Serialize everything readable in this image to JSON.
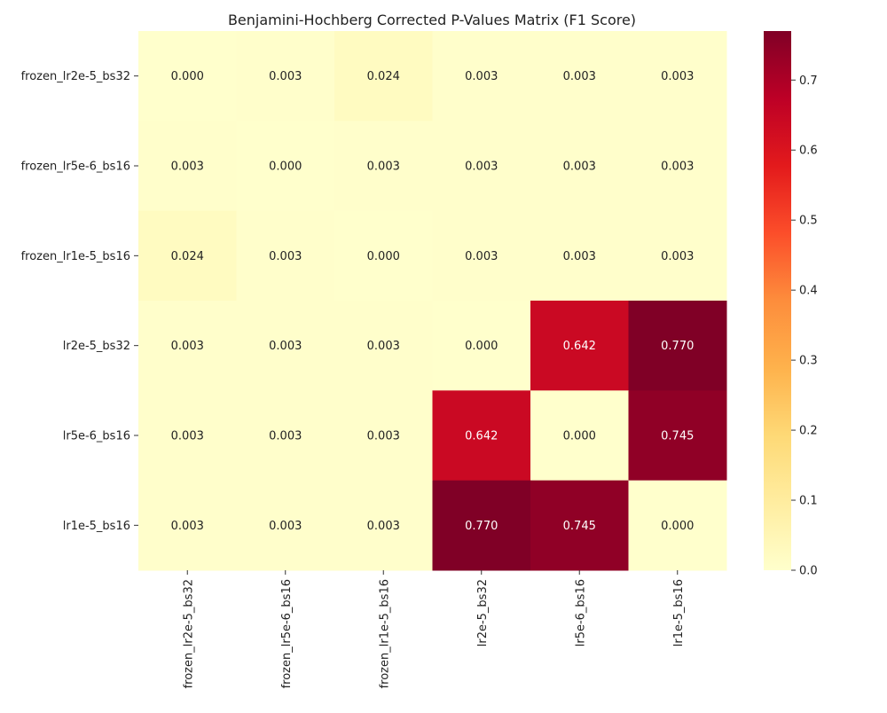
{
  "chart_data": {
    "type": "heatmap",
    "title": "Benjamini-Hochberg Corrected P-Values Matrix (F1 Score)",
    "rows": [
      "frozen_lr2e-5_bs32",
      "frozen_lr5e-6_bs16",
      "frozen_lr1e-5_bs16",
      "lr2e-5_bs32",
      "lr5e-6_bs16",
      "lr1e-5_bs16"
    ],
    "columns": [
      "frozen_lr2e-5_bs32",
      "frozen_lr5e-6_bs16",
      "frozen_lr1e-5_bs16",
      "lr2e-5_bs32",
      "lr5e-6_bs16",
      "lr1e-5_bs16"
    ],
    "values": [
      [
        0.0,
        0.003,
        0.024,
        0.003,
        0.003,
        0.003
      ],
      [
        0.003,
        0.0,
        0.003,
        0.003,
        0.003,
        0.003
      ],
      [
        0.024,
        0.003,
        0.0,
        0.003,
        0.003,
        0.003
      ],
      [
        0.003,
        0.003,
        0.003,
        0.0,
        0.642,
        0.77
      ],
      [
        0.003,
        0.003,
        0.003,
        0.642,
        0.0,
        0.745
      ],
      [
        0.003,
        0.003,
        0.003,
        0.77,
        0.745,
        0.0
      ]
    ],
    "value_format": "0.000",
    "colormap": "YlOrRd",
    "vmin": 0.0,
    "vmax": 0.77,
    "colorbar_ticks": [
      "0.0",
      "0.1",
      "0.2",
      "0.3",
      "0.4",
      "0.5",
      "0.6",
      "0.7"
    ],
    "colorbar_tick_values": [
      0.0,
      0.1,
      0.2,
      0.3,
      0.4,
      0.5,
      0.6,
      0.7
    ],
    "xlabel": "",
    "ylabel": ""
  }
}
